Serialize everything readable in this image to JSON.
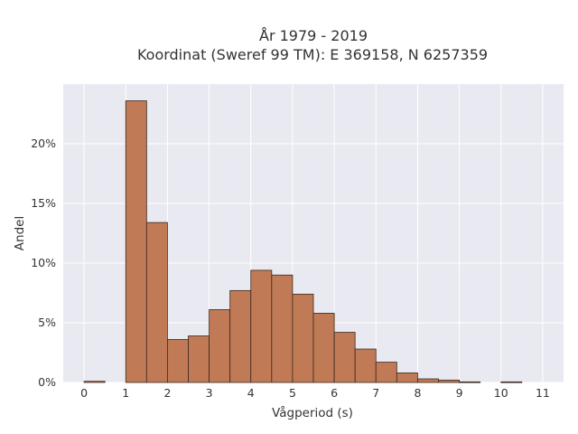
{
  "chart_data": {
    "type": "bar",
    "title_line1": "År 1979 - 2019",
    "title_line2": "Koordinat (Sweref 99 TM): E 369158, N 6257359",
    "xlabel": "Vågperiod (s)",
    "ylabel": "Andel",
    "bin_width": 0.5,
    "bins": [
      {
        "start": 0.0,
        "value": 0.1
      },
      {
        "start": 1.0,
        "value": 23.6
      },
      {
        "start": 1.5,
        "value": 13.4
      },
      {
        "start": 2.0,
        "value": 3.6
      },
      {
        "start": 2.5,
        "value": 3.9
      },
      {
        "start": 3.0,
        "value": 6.1
      },
      {
        "start": 3.5,
        "value": 7.7
      },
      {
        "start": 4.0,
        "value": 9.4
      },
      {
        "start": 4.5,
        "value": 9.0
      },
      {
        "start": 5.0,
        "value": 7.4
      },
      {
        "start": 5.5,
        "value": 5.8
      },
      {
        "start": 6.0,
        "value": 4.2
      },
      {
        "start": 6.5,
        "value": 2.8
      },
      {
        "start": 7.0,
        "value": 1.7
      },
      {
        "start": 7.5,
        "value": 0.8
      },
      {
        "start": 8.0,
        "value": 0.3
      },
      {
        "start": 8.5,
        "value": 0.2
      },
      {
        "start": 9.0,
        "value": 0.05
      },
      {
        "start": 10.0,
        "value": 0.05
      }
    ],
    "x_ticks": [
      "0",
      "1",
      "2",
      "3",
      "4",
      "5",
      "6",
      "7",
      "8",
      "9",
      "10",
      "11"
    ],
    "y_ticks": [
      "0%",
      "5%",
      "10%",
      "15%",
      "20%"
    ],
    "xlim": [
      -0.5,
      11.5
    ],
    "ylim": [
      0,
      25
    ],
    "grid": true,
    "bar_color": "#c07a55",
    "bar_edge_color": "#3a2a20",
    "plot_bg_color": "#e9e9f1"
  }
}
